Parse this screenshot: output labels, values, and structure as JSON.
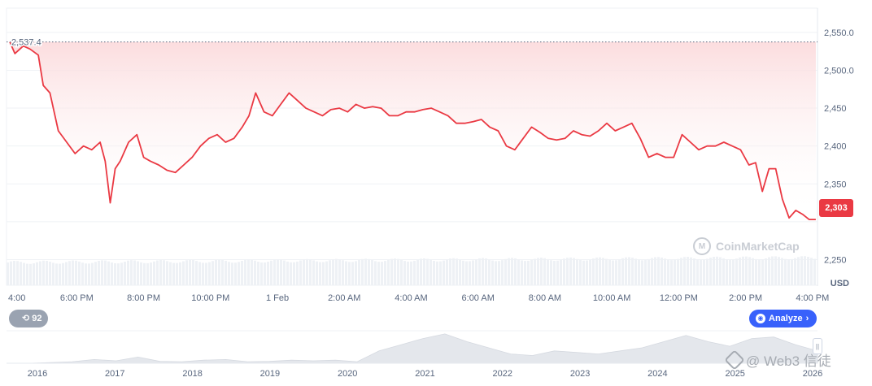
{
  "chart_data": {
    "type": "line",
    "title": "",
    "xlabel": "",
    "ylabel": "USD",
    "ylim": [
      2228,
      2582
    ],
    "y_ticks": [
      2250,
      2300,
      2350,
      2400,
      2450,
      2500,
      2550
    ],
    "y_tick_labels": [
      "2,250",
      "",
      "2,350",
      "2,400",
      "2,450",
      "2,500.0",
      "2,550.0"
    ],
    "x_ticks": [
      {
        "t": 0,
        "label": "4:00 PM"
      },
      {
        "t": 2,
        "label": "6:00 PM"
      },
      {
        "t": 4,
        "label": "8:00 PM"
      },
      {
        "t": 6,
        "label": "10:00 PM"
      },
      {
        "t": 8,
        "label": "1 Feb"
      },
      {
        "t": 10,
        "label": "2:00 AM"
      },
      {
        "t": 12,
        "label": "4:00 AM"
      },
      {
        "t": 14,
        "label": "6:00 AM"
      },
      {
        "t": 16,
        "label": "8:00 AM"
      },
      {
        "t": 18,
        "label": "10:00 AM"
      },
      {
        "t": 20,
        "label": "12:00 PM"
      },
      {
        "t": 22,
        "label": "2:00 PM"
      },
      {
        "t": 24,
        "label": "4:00 PM"
      }
    ],
    "first_tick_visible_text": "4:00",
    "series": [
      {
        "color": "#ea3943",
        "t": [
          0,
          0.15,
          0.4,
          0.6,
          0.85,
          1.0,
          1.2,
          1.45,
          1.7,
          1.95,
          2.2,
          2.45,
          2.7,
          2.85,
          3.0,
          3.15,
          3.3,
          3.55,
          3.8,
          4.0,
          4.2,
          4.45,
          4.7,
          4.95,
          5.2,
          5.45,
          5.7,
          5.95,
          6.2,
          6.45,
          6.7,
          6.95,
          7.15,
          7.35,
          7.6,
          7.85,
          8.1,
          8.35,
          8.6,
          8.85,
          9.1,
          9.35,
          9.6,
          9.85,
          10.1,
          10.35,
          10.6,
          10.85,
          11.1,
          11.35,
          11.6,
          11.85,
          12.1,
          12.35,
          12.6,
          12.85,
          13.1,
          13.35,
          13.6,
          13.85,
          14.1,
          14.35,
          14.6,
          14.85,
          15.1,
          15.35,
          15.6,
          15.85,
          16.1,
          16.35,
          16.6,
          16.85,
          17.1,
          17.35,
          17.6,
          17.85,
          18.1,
          18.35,
          18.6,
          18.85,
          19.1,
          19.35,
          19.6,
          19.85,
          20.1,
          20.35,
          20.6,
          20.85,
          21.1,
          21.35,
          21.6,
          21.85,
          22.1,
          22.3,
          22.5,
          22.7,
          22.9,
          23.1,
          23.3,
          23.5,
          23.7,
          23.9,
          24.1
        ],
        "values": [
          2537.4,
          2522,
          2532,
          2528,
          2520,
          2480,
          2470,
          2420,
          2405,
          2390,
          2400,
          2395,
          2405,
          2380,
          2325,
          2370,
          2380,
          2405,
          2415,
          2385,
          2380,
          2375,
          2368,
          2365,
          2375,
          2385,
          2400,
          2410,
          2415,
          2405,
          2410,
          2425,
          2440,
          2470,
          2445,
          2440,
          2455,
          2470,
          2460,
          2450,
          2445,
          2440,
          2448,
          2450,
          2445,
          2455,
          2450,
          2452,
          2450,
          2440,
          2440,
          2445,
          2445,
          2448,
          2450,
          2445,
          2440,
          2430,
          2430,
          2432,
          2435,
          2425,
          2420,
          2400,
          2395,
          2410,
          2425,
          2418,
          2410,
          2408,
          2410,
          2420,
          2415,
          2413,
          2420,
          2430,
          2420,
          2425,
          2430,
          2410,
          2385,
          2390,
          2385,
          2385,
          2415,
          2405,
          2395,
          2400,
          2400,
          2405,
          2400,
          2395,
          2375,
          2378,
          2340,
          2370,
          2370,
          2330,
          2305,
          2315,
          2310,
          2303,
          2303
        ]
      }
    ],
    "reference_line": {
      "value": 2537.4,
      "label": "2,537.4"
    },
    "current_price_label": "2,303",
    "volume_label": "",
    "overview": {
      "x_labels": [
        "2016",
        "2017",
        "2018",
        "2019",
        "2020",
        "2021",
        "2022",
        "2023",
        "2024",
        "2025",
        "2026"
      ],
      "values": [
        0,
        0,
        0.02,
        0.05,
        0.12,
        0.08,
        0.2,
        0.06,
        0.05,
        0.1,
        0.12,
        0.05,
        0.06,
        0.1,
        0.08,
        0.1,
        0.05,
        0.4,
        0.6,
        0.8,
        0.95,
        0.7,
        0.5,
        0.3,
        0.25,
        0.4,
        0.35,
        0.3,
        0.4,
        0.5,
        0.7,
        0.9,
        0.7,
        0.55,
        0.8,
        0.85,
        0.6,
        0.4
      ]
    }
  },
  "controls": {
    "range_badge_icon": "history-icon",
    "range_badge_value": "92",
    "analyze_icon": "analyze-icon",
    "analyze_label": "Analyze",
    "analyze_chevron": "chevron-right-icon"
  },
  "watermark": {
    "brand": "CoinMarketCap",
    "web3": "@ Web3 信徒"
  },
  "colors": {
    "line": "#ea3943",
    "area_top": "#fbd9db",
    "badge": "#9aa3b1",
    "analyze": "#3861fb",
    "overview_fill": "#e4e7ec"
  }
}
